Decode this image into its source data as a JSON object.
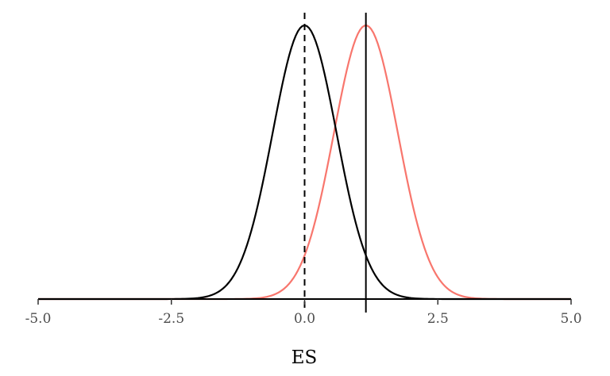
{
  "chart_data": {
    "type": "line",
    "title": "",
    "xlabel": "ES",
    "ylabel": "",
    "xlim": [
      -5,
      5
    ],
    "ylim": [
      0,
      1
    ],
    "grid": false,
    "x_ticks": [
      -5.0,
      -2.5,
      0.0,
      2.5,
      5.0
    ],
    "x_tick_labels": [
      "-5.0",
      "-2.5",
      "0.0",
      "2.5",
      "5.0"
    ],
    "y_ticks_shown": false,
    "series": [
      {
        "distribution": "normal",
        "mean": 0.0,
        "sd": 0.6,
        "color": "#000000",
        "style": "solid"
      },
      {
        "distribution": "normal",
        "mean": 1.15,
        "sd": 0.6,
        "color": "#F8766D",
        "style": "solid"
      }
    ],
    "reference_lines": [
      {
        "axis": "x",
        "value": 0.0,
        "style": "dashed",
        "color": "#000000"
      },
      {
        "axis": "x",
        "value": 1.15,
        "style": "solid",
        "color": "#000000"
      }
    ]
  }
}
